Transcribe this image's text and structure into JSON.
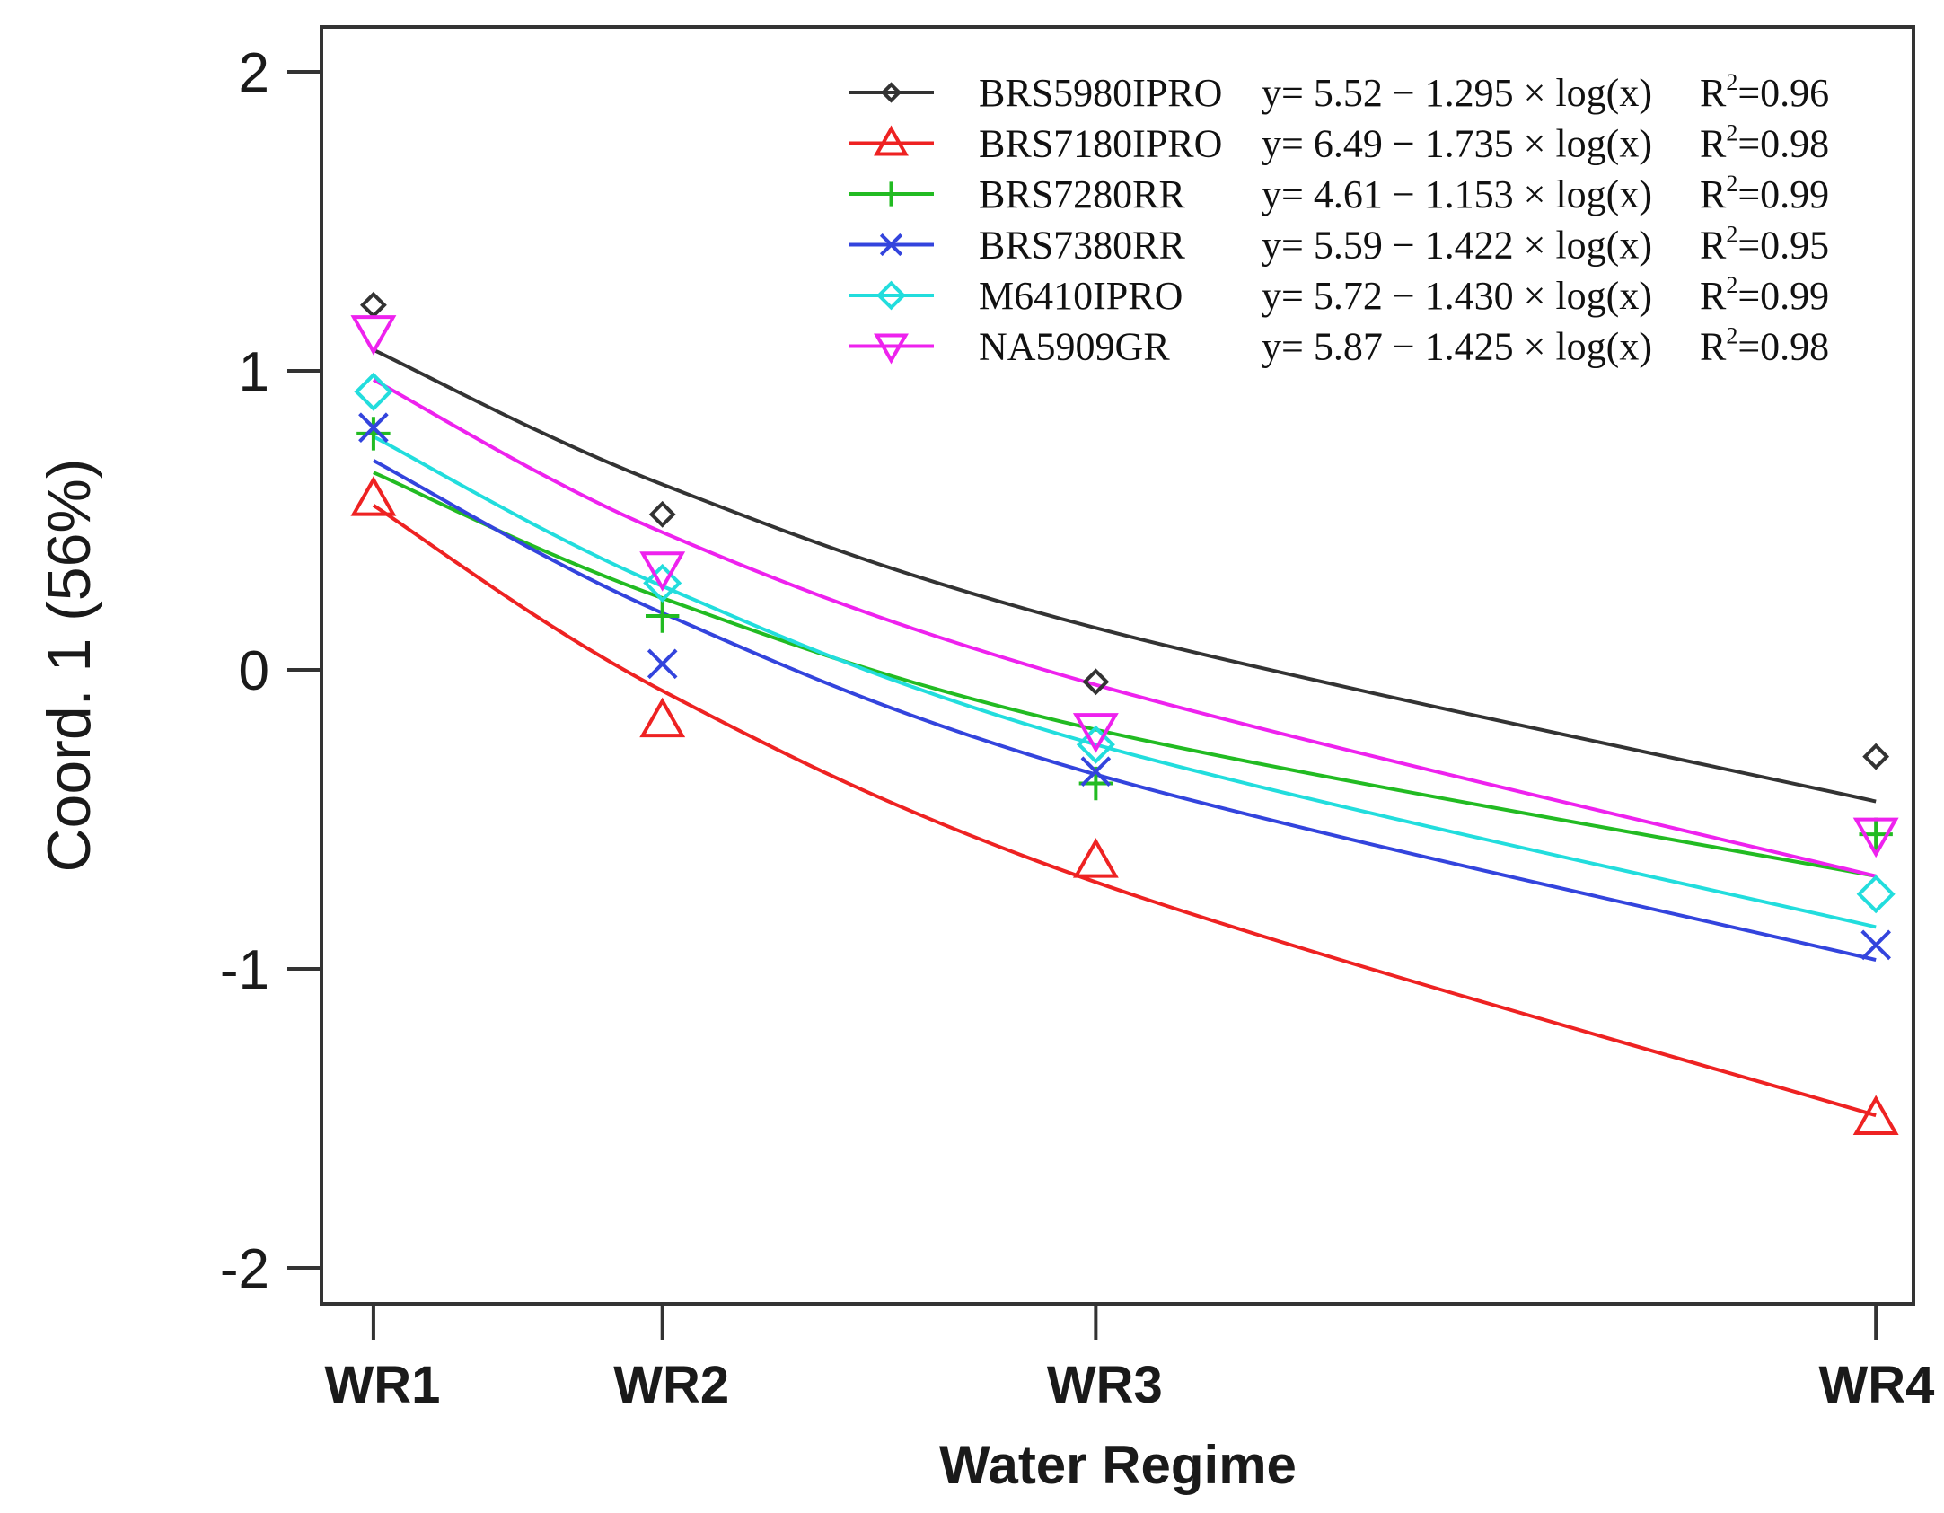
{
  "chart_data": {
    "type": "line",
    "title": "",
    "xlabel": "Water Regime",
    "ylabel": "Coord. 1 (56%)",
    "categories": [
      "WR1",
      "WR2",
      "WR3",
      "WR4"
    ],
    "x": [
      1,
      2,
      3.5,
      6.2
    ],
    "yticks": [
      2,
      1,
      0,
      -1,
      -2
    ],
    "ytick_labels": [
      "2",
      "1",
      "0",
      "-1",
      "-2"
    ],
    "xlim": [
      0.82,
      6.33
    ],
    "ylim": [
      -2.12,
      2.15
    ],
    "grid": false,
    "legend_position": "top-right",
    "series": [
      {
        "name": "BRS5980IPRO",
        "equation": "y= 5.52 − 1.295 × log(x)",
        "r2_label": "R",
        "r2_sup": "2",
        "r2_value": "=0.96",
        "color": "#333333",
        "marker": "diamond",
        "points": [
          1.22,
          0.52,
          -0.04,
          -0.29
        ],
        "fit": [
          1.07,
          0.62,
          0.14,
          -0.44
        ]
      },
      {
        "name": "BRS7180IPRO",
        "equation": "y= 6.49 − 1.735 × log(x)",
        "r2_label": "R",
        "r2_sup": "2",
        "r2_value": "=0.98",
        "color": "#ee2222",
        "marker": "triangle-up",
        "points": [
          0.57,
          -0.17,
          -0.64,
          -1.5
        ],
        "fit": [
          0.55,
          -0.07,
          -0.71,
          -1.49
        ]
      },
      {
        "name": "BRS7280RR",
        "equation": "y= 4.61 − 1.153 × log(x)",
        "r2_label": "R",
        "r2_sup": "2",
        "r2_value": "=0.99",
        "color": "#22bb22",
        "marker": "plus",
        "points": [
          0.79,
          0.18,
          -0.38,
          -0.55
        ],
        "fit": [
          0.66,
          0.24,
          -0.2,
          -0.69
        ]
      },
      {
        "name": "BRS7380RR",
        "equation": "y= 5.59 − 1.422 × log(x)",
        "r2_label": "R",
        "r2_sup": "2",
        "r2_value": "=0.95",
        "color": "#3344dd",
        "marker": "cross",
        "points": [
          0.81,
          0.02,
          -0.34,
          -0.92
        ],
        "fit": [
          0.7,
          0.19,
          -0.35,
          -0.97
        ]
      },
      {
        "name": "M6410IPRO",
        "equation": "y= 5.72 − 1.430 × log(x)",
        "r2_label": "R",
        "r2_sup": "2",
        "r2_value": "=0.99",
        "color": "#22dddd",
        "marker": "diamond-open",
        "points": [
          0.93,
          0.29,
          -0.25,
          -0.75
        ],
        "fit": [
          0.78,
          0.28,
          -0.25,
          -0.86
        ]
      },
      {
        "name": "NA5909GR",
        "equation": "y= 5.87 − 1.425 × log(x)",
        "r2_label": "R",
        "r2_sup": "2",
        "r2_value": "=0.98",
        "color": "#ee22ee",
        "marker": "triangle-down",
        "points": [
          1.13,
          0.34,
          -0.2,
          -0.55
        ],
        "fit": [
          0.97,
          0.46,
          -0.05,
          -0.69
        ]
      }
    ]
  }
}
